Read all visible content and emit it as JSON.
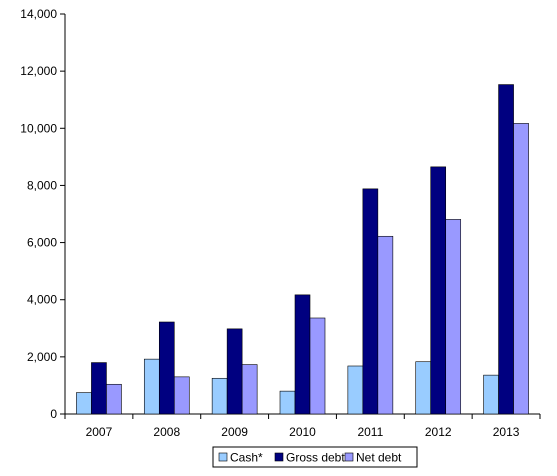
{
  "chart_data": {
    "type": "bar",
    "title": "",
    "xlabel": "",
    "ylabel": "",
    "categories": [
      "2007",
      "2008",
      "2009",
      "2010",
      "2011",
      "2012",
      "2013"
    ],
    "series": [
      {
        "name": "Cash*",
        "color": "#99ccff",
        "values": [
          750,
          1920,
          1250,
          800,
          1680,
          1830,
          1360
        ]
      },
      {
        "name": "Gross debt",
        "color": "#000080",
        "values": [
          1800,
          3220,
          2980,
          4170,
          7880,
          8650,
          11530
        ]
      },
      {
        "name": "Net debt",
        "color": "#9999ff",
        "values": [
          1040,
          1300,
          1730,
          3360,
          6220,
          6810,
          10170
        ]
      }
    ],
    "ylim": [
      0,
      14000
    ],
    "yticks": [
      0,
      2000,
      4000,
      6000,
      8000,
      10000,
      12000,
      14000
    ],
    "ytick_labels": [
      "0",
      "2,000",
      "4,000",
      "6,000",
      "8,000",
      "10,000",
      "12,000",
      "14,000"
    ],
    "grid": false,
    "legend_position": "bottom"
  }
}
